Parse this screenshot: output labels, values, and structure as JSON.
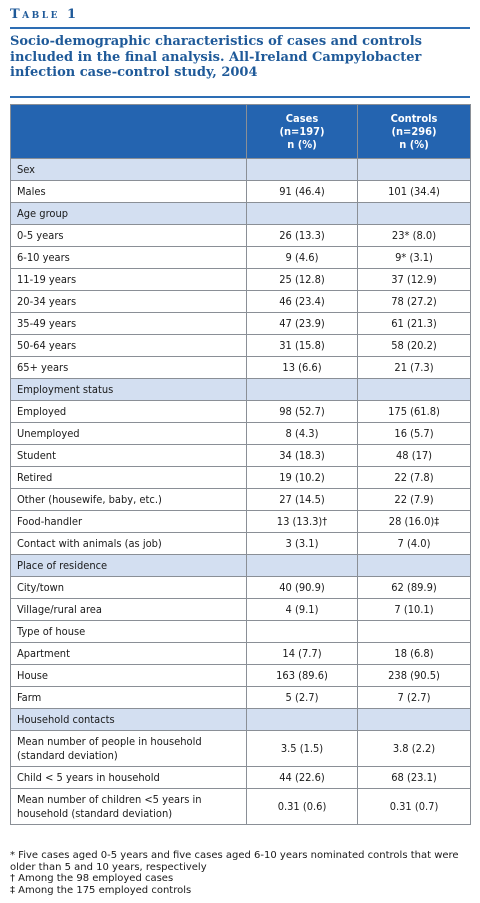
{
  "table_label": "Table 1",
  "caption": "Socio-demographic characteristics of cases and controls included in the final analysis. All-Ireland Campylobacter infection case-control study, 2004",
  "columns": [
    {
      "label": "Cases",
      "n": "(n=197)",
      "unit": "n (%)"
    },
    {
      "label": "Controls",
      "n": "(n=296)",
      "unit": "n (%)"
    }
  ],
  "rows": [
    {
      "label": "Sex",
      "section": true,
      "cases": "",
      "controls": ""
    },
    {
      "label": "Males",
      "cases": "91 (46.4)",
      "controls": "101 (34.4)"
    },
    {
      "label": "Age group",
      "section": true,
      "cases": "",
      "controls": ""
    },
    {
      "label": "0-5 years",
      "cases": "26 (13.3)",
      "controls": "23* (8.0)"
    },
    {
      "label": "6-10 years",
      "cases": "9 (4.6)",
      "controls": "9* (3.1)"
    },
    {
      "label": "11-19 years",
      "cases": "25 (12.8)",
      "controls": "37 (12.9)"
    },
    {
      "label": "20-34 years",
      "cases": "46 (23.4)",
      "controls": "78 (27.2)"
    },
    {
      "label": "35-49 years",
      "cases": "47 (23.9)",
      "controls": "61 (21.3)"
    },
    {
      "label": "50-64 years",
      "cases": "31 (15.8)",
      "controls": "58 (20.2)"
    },
    {
      "label": "65+ years",
      "cases": "13 (6.6)",
      "controls": "21 (7.3)"
    },
    {
      "label": "Employment status",
      "section": true,
      "cases": "",
      "controls": ""
    },
    {
      "label": "Employed",
      "cases": "98 (52.7)",
      "controls": "175 (61.8)"
    },
    {
      "label": "Unemployed",
      "cases": "8 (4.3)",
      "controls": "16 (5.7)"
    },
    {
      "label": "Student",
      "cases": "34 (18.3)",
      "controls": "48 (17)"
    },
    {
      "label": "Retired",
      "cases": "19 (10.2)",
      "controls": "22 (7.8)"
    },
    {
      "label": "Other (housewife, baby, etc.)",
      "cases": "27 (14.5)",
      "controls": "22 (7.9)"
    },
    {
      "label": "Food-handler",
      "cases": "13 (13.3)†",
      "controls": "28 (16.0)‡"
    },
    {
      "label": "Contact with animals (as job)",
      "cases": "3 (3.1)",
      "controls": "7 (4.0)"
    },
    {
      "label": "Place of residence",
      "section": true,
      "cases": "",
      "controls": ""
    },
    {
      "label": "City/town",
      "cases": "40 (90.9)",
      "controls": "62 (89.9)"
    },
    {
      "label": "Village/rural area",
      "cases": "4 (9.1)",
      "controls": "7 (10.1)"
    },
    {
      "label": "Type of house",
      "cases": "",
      "controls": ""
    },
    {
      "label": "Apartment",
      "cases": "14 (7.7)",
      "controls": "18 (6.8)"
    },
    {
      "label": "House",
      "cases": "163 (89.6)",
      "controls": "238 (90.5)"
    },
    {
      "label": "Farm",
      "cases": "5 (2.7)",
      "controls": "7 (2.7)"
    },
    {
      "label": "Household contacts",
      "section": true,
      "cases": "",
      "controls": ""
    },
    {
      "label": "Mean number of people in household (standard deviation)",
      "tall": true,
      "cases": "3.5 (1.5)",
      "controls": "3.8 (2.2)"
    },
    {
      "label": "Child < 5 years in household",
      "cases": "44 (22.6)",
      "controls": "68 (23.1)"
    },
    {
      "label": "Mean number of children <5 years in household (standard deviation)",
      "tall": true,
      "cases": "0.31 (0.6)",
      "controls": "0.31 (0.7)"
    }
  ],
  "footnotes": [
    "* Five cases aged 0-5 years and five cases aged 6-10 years nominated controls that were older than 5 and 10 years, respectively",
    "† Among the 98 employed cases",
    "‡ Among the 175 employed controls"
  ]
}
